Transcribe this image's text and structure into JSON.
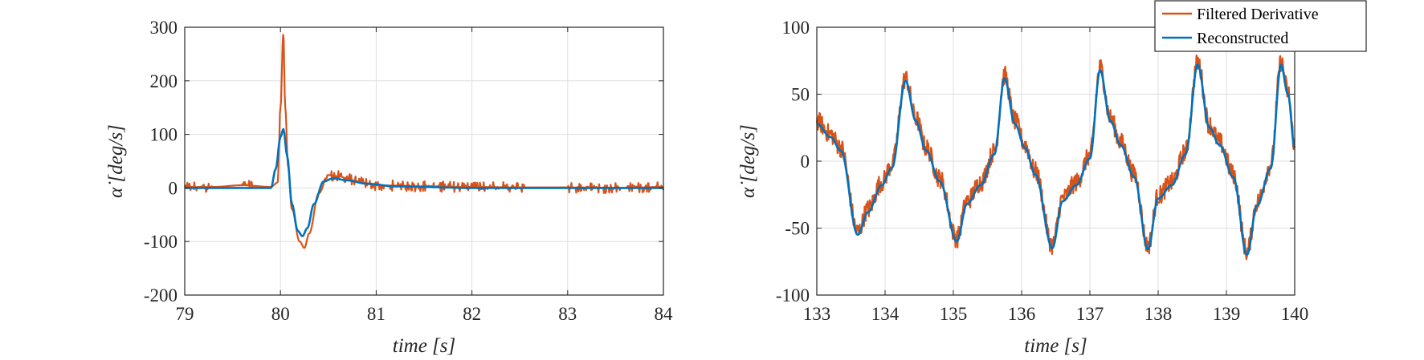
{
  "chart_data": [
    {
      "type": "line",
      "xlabel": "time [s]",
      "ylabel": "α̇ [deg/s]",
      "xlim": [
        79,
        84
      ],
      "ylim": [
        -200,
        300
      ],
      "xticks": [
        79,
        80,
        81,
        82,
        83,
        84
      ],
      "yticks": [
        -200,
        -100,
        0,
        100,
        200,
        300
      ],
      "grid": true,
      "series": [
        {
          "name": "Filtered Derivative",
          "color": "#D95319",
          "x": [
            79.0,
            79.3,
            79.6,
            79.9,
            79.97,
            80.0,
            80.03,
            80.05,
            80.08,
            80.12,
            80.2,
            80.25,
            80.3,
            80.4,
            80.5,
            80.6,
            80.7,
            80.8,
            81.0,
            81.5,
            82.0,
            82.5,
            83.0,
            83.5,
            84.0
          ],
          "y": [
            2,
            2,
            5,
            2,
            10,
            150,
            288,
            150,
            40,
            -40,
            -100,
            -112,
            -85,
            -10,
            24,
            22,
            18,
            12,
            5,
            3,
            2,
            1,
            1,
            0,
            2
          ],
          "noise_amplitude": 10
        },
        {
          "name": "Reconstructed",
          "color": "#0072BD",
          "x": [
            79.0,
            79.9,
            79.95,
            80.0,
            80.03,
            80.07,
            80.12,
            80.18,
            80.23,
            80.28,
            80.35,
            80.45,
            80.55,
            80.7,
            80.9,
            81.2,
            82.0,
            84.0
          ],
          "y": [
            0,
            0,
            35,
            95,
            110,
            60,
            -30,
            -80,
            -90,
            -75,
            -30,
            12,
            18,
            14,
            8,
            3,
            0,
            0
          ]
        }
      ]
    },
    {
      "type": "line",
      "xlabel": "time [s]",
      "ylabel": "α̇ [deg/s]",
      "xlim": [
        133,
        140
      ],
      "ylim": [
        -100,
        100
      ],
      "xticks": [
        133,
        134,
        135,
        136,
        137,
        138,
        139,
        140
      ],
      "yticks": [
        -100,
        -50,
        0,
        50,
        100
      ],
      "grid": true,
      "legend": {
        "position": "top-right",
        "entries": [
          "Filtered Derivative",
          "Reconstructed"
        ]
      },
      "series": [
        {
          "name": "Filtered Derivative",
          "color": "#D95319",
          "noise_amplitude": 12
        },
        {
          "name": "Reconstructed",
          "color": "#0072BD",
          "x": [
            133.0,
            133.2,
            133.35,
            133.6,
            133.75,
            133.95,
            134.1,
            134.3,
            134.45,
            134.6,
            134.8,
            135.05,
            135.2,
            135.4,
            135.6,
            135.75,
            135.9,
            136.05,
            136.2,
            136.45,
            136.6,
            136.8,
            137.0,
            137.15,
            137.3,
            137.45,
            137.65,
            137.85,
            138.0,
            138.2,
            138.4,
            138.58,
            138.75,
            138.9,
            139.1,
            139.3,
            139.45,
            139.65,
            139.8,
            139.9,
            140.0
          ],
          "y": [
            28,
            18,
            8,
            -55,
            -38,
            -18,
            -5,
            60,
            30,
            8,
            -15,
            -60,
            -32,
            -18,
            5,
            62,
            28,
            10,
            -10,
            -65,
            -30,
            -18,
            2,
            68,
            30,
            12,
            -12,
            -66,
            -28,
            -18,
            5,
            72,
            25,
            12,
            -12,
            -70,
            -33,
            -5,
            72,
            50,
            10
          ]
        }
      ]
    }
  ]
}
